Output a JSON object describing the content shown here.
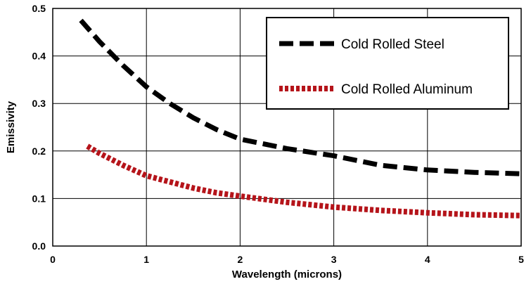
{
  "chart_data": {
    "type": "line",
    "xlabel": "Wavelength (microns)",
    "ylabel": "Emissivity",
    "xlim": [
      0,
      5
    ],
    "ylim": [
      0,
      0.5
    ],
    "x_ticks": [
      0,
      1,
      2,
      3,
      4,
      5
    ],
    "x_tick_labels": [
      "0",
      "1",
      "2",
      "3",
      "4",
      "5"
    ],
    "y_ticks": [
      0,
      0.1,
      0.2,
      0.3,
      0.4,
      0.5
    ],
    "y_tick_labels": [
      "0.0",
      "0.1",
      "0.2",
      "0.3",
      "0.4",
      "0.5"
    ],
    "grid": true,
    "legend_position": "top-right",
    "series": [
      {
        "name": "Cold Rolled Steel",
        "color": "#000000",
        "style": "dashed",
        "x": [
          0.3,
          0.5,
          0.75,
          1.0,
          1.25,
          1.5,
          1.75,
          2.0,
          2.5,
          3.0,
          3.5,
          4.0,
          4.5,
          5.0
        ],
        "y": [
          0.475,
          0.43,
          0.38,
          0.335,
          0.3,
          0.27,
          0.245,
          0.225,
          0.205,
          0.19,
          0.17,
          0.16,
          0.155,
          0.152
        ]
      },
      {
        "name": "Cold Rolled Aluminum",
        "color": "#b5141a",
        "style": "dotted",
        "x": [
          0.37,
          0.5,
          0.75,
          1.0,
          1.25,
          1.5,
          1.75,
          2.0,
          2.5,
          3.0,
          3.5,
          4.0,
          4.5,
          5.0
        ],
        "y": [
          0.21,
          0.195,
          0.17,
          0.148,
          0.135,
          0.122,
          0.112,
          0.105,
          0.092,
          0.082,
          0.075,
          0.07,
          0.066,
          0.064
        ]
      }
    ]
  }
}
